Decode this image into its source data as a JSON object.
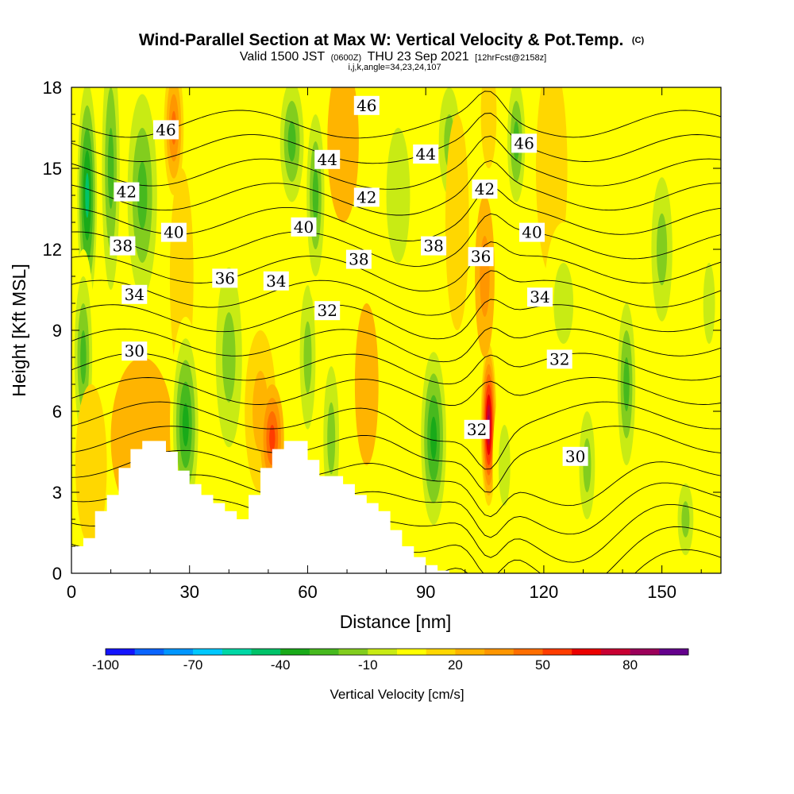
{
  "title": {
    "main": "Wind-Parallel Section at Max W: Vertical Velocity & Pot.Temp.",
    "main_suffix": "(C)",
    "valid_a": "Valid 1500 JST",
    "valid_b": "(0600Z)",
    "valid_c": "THU 23 Sep 2021",
    "valid_d": "[12hrFcst@2158z]",
    "ijk": "i,j,k,angle=34,23,24,107"
  },
  "chart_data": {
    "type": "heatmap",
    "xlabel": "Distance [nm]",
    "ylabel": "Height [Kft MSL]",
    "xlim": [
      0,
      165
    ],
    "ylim": [
      0,
      18
    ],
    "x_ticks": [
      "0",
      "30",
      "60",
      "90",
      "120",
      "150"
    ],
    "y_ticks": [
      "0",
      "3",
      "6",
      "9",
      "12",
      "15",
      "18"
    ],
    "colorbar": {
      "label": "Vertical Velocity [cm/s]",
      "min": -100,
      "max": 100,
      "tick_labels": [
        "-100",
        "-70",
        "-40",
        "-10",
        "20",
        "50",
        "80"
      ],
      "colors": [
        "#1414ff",
        "#0a64ff",
        "#0096ff",
        "#00c8ff",
        "#00d7a5",
        "#00c369",
        "#19aa19",
        "#46b91e",
        "#82cd1e",
        "#c8eb14",
        "#ffff00",
        "#ffd700",
        "#ffb400",
        "#ff9600",
        "#ff6e00",
        "#ff3c00",
        "#eb0000",
        "#c80032",
        "#9b005a",
        "#64008c"
      ]
    },
    "series": [
      {
        "name": "Vertical Velocity",
        "cells": [
          {
            "x": 4,
            "z": 14,
            "w": -45,
            "sx": 3,
            "sz": 5
          },
          {
            "x": 3,
            "z": 8,
            "w": -25,
            "sx": 3,
            "sz": 4
          },
          {
            "x": 10,
            "z": 15,
            "w": -30,
            "sx": 3,
            "sz": 6
          },
          {
            "x": 18,
            "z": 14,
            "w": -25,
            "sx": 5,
            "sz": 5
          },
          {
            "x": 26,
            "z": 16.5,
            "w": 45,
            "sx": 2.5,
            "sz": 2.5
          },
          {
            "x": 28,
            "z": 11,
            "w": 15,
            "sx": 3,
            "sz": 4
          },
          {
            "x": 18,
            "z": 5,
            "w": 20,
            "sx": 8,
            "sz": 3
          },
          {
            "x": 5,
            "z": 4,
            "w": 15,
            "sx": 4,
            "sz": 3
          },
          {
            "x": 29,
            "z": 5.5,
            "w": -35,
            "sx": 4,
            "sz": 4
          },
          {
            "x": 40,
            "z": 8,
            "w": -20,
            "sx": 5,
            "sz": 5
          },
          {
            "x": 48,
            "z": 6,
            "w": 25,
            "sx": 4,
            "sz": 3
          },
          {
            "x": 51,
            "z": 5,
            "w": 50,
            "sx": 3,
            "sz": 2
          },
          {
            "x": 60,
            "z": 8,
            "w": -20,
            "sx": 3,
            "sz": 4
          },
          {
            "x": 62,
            "z": 14,
            "w": -25,
            "sx": 3,
            "sz": 4
          },
          {
            "x": 56,
            "z": 16,
            "w": -30,
            "sx": 4,
            "sz": 3
          },
          {
            "x": 69,
            "z": 16,
            "w": 20,
            "sx": 4,
            "sz": 3
          },
          {
            "x": 66,
            "z": 5,
            "w": -20,
            "sx": 3,
            "sz": 4
          },
          {
            "x": 75,
            "z": 7,
            "w": 20,
            "sx": 3,
            "sz": 3
          },
          {
            "x": 83,
            "z": 14,
            "w": -10,
            "sx": 6,
            "sz": 5
          },
          {
            "x": 92,
            "z": 5,
            "w": -40,
            "sx": 4,
            "sz": 4
          },
          {
            "x": 96,
            "z": 16,
            "w": -20,
            "sx": 4,
            "sz": 3
          },
          {
            "x": 98,
            "z": 13,
            "w": 10,
            "sx": 3,
            "sz": 4
          },
          {
            "x": 106,
            "z": 5.5,
            "w": 85,
            "sx": 2,
            "sz": 3
          },
          {
            "x": 105,
            "z": 11,
            "w": 30,
            "sx": 2.5,
            "sz": 3
          },
          {
            "x": 106,
            "z": 17,
            "w": 10,
            "sx": 2,
            "sz": 2
          },
          {
            "x": 110,
            "z": 4,
            "w": -10,
            "sx": 3,
            "sz": 3
          },
          {
            "x": 113,
            "z": 16,
            "w": -30,
            "sx": 3,
            "sz": 3
          },
          {
            "x": 122,
            "z": 15,
            "w": 15,
            "sx": 4,
            "sz": 4
          },
          {
            "x": 125,
            "z": 10,
            "w": -10,
            "sx": 5,
            "sz": 3
          },
          {
            "x": 131,
            "z": 4,
            "w": -20,
            "sx": 3,
            "sz": 3
          },
          {
            "x": 141,
            "z": 7,
            "w": -25,
            "sx": 3,
            "sz": 4
          },
          {
            "x": 150,
            "z": 12,
            "w": -15,
            "sx": 4,
            "sz": 4
          },
          {
            "x": 156,
            "z": 2,
            "w": -15,
            "sx": 3,
            "sz": 2
          },
          {
            "x": 162,
            "z": 10,
            "w": -10,
            "sx": 3,
            "sz": 3
          }
        ]
      },
      {
        "name": "Pot.Temp.",
        "isotherm_labels": [
          {
            "v": "30",
            "x": 16,
            "z": 8.2
          },
          {
            "v": "30",
            "x": 128,
            "z": 4.3
          },
          {
            "v": "32",
            "x": 65,
            "z": 9.7
          },
          {
            "v": "32",
            "x": 103,
            "z": 5.3
          },
          {
            "v": "32",
            "x": 124,
            "z": 7.9
          },
          {
            "v": "34",
            "x": 16,
            "z": 10.3
          },
          {
            "v": "34",
            "x": 52,
            "z": 10.8
          },
          {
            "v": "34",
            "x": 119,
            "z": 10.2
          },
          {
            "v": "36",
            "x": 39,
            "z": 10.9
          },
          {
            "v": "36",
            "x": 104,
            "z": 11.7
          },
          {
            "v": "38",
            "x": 13,
            "z": 12.1
          },
          {
            "v": "38",
            "x": 73,
            "z": 11.6
          },
          {
            "v": "38",
            "x": 92,
            "z": 12.1
          },
          {
            "v": "40",
            "x": 26,
            "z": 12.6
          },
          {
            "v": "40",
            "x": 59,
            "z": 12.8
          },
          {
            "v": "40",
            "x": 117,
            "z": 12.6
          },
          {
            "v": "42",
            "x": 14,
            "z": 14.1
          },
          {
            "v": "42",
            "x": 75,
            "z": 13.9
          },
          {
            "v": "42",
            "x": 105,
            "z": 14.2
          },
          {
            "v": "44",
            "x": 65,
            "z": 15.3
          },
          {
            "v": "44",
            "x": 90,
            "z": 15.5
          },
          {
            "v": "46",
            "x": 24,
            "z": 16.4
          },
          {
            "v": "46",
            "x": 75,
            "z": 17.3
          },
          {
            "v": "46",
            "x": 115,
            "z": 15.9
          }
        ]
      }
    ],
    "terrain": {
      "name": "Terrain",
      "x": [
        0,
        3,
        6,
        9,
        12,
        15,
        18,
        21,
        24,
        27,
        30,
        33,
        36,
        39,
        42,
        45,
        48,
        51,
        54,
        57,
        60,
        63,
        66,
        69,
        72,
        75,
        78,
        81,
        84,
        87,
        90,
        93,
        96,
        99,
        102,
        105,
        108,
        111,
        114,
        117,
        120,
        123,
        126,
        129,
        132,
        135,
        138,
        141,
        144,
        147,
        150,
        153,
        156,
        159,
        162,
        165
      ],
      "z": [
        1.0,
        1.3,
        2.3,
        2.9,
        3.9,
        4.6,
        4.9,
        4.9,
        4.5,
        3.8,
        3.3,
        2.9,
        2.6,
        2.3,
        2.0,
        2.9,
        3.9,
        4.6,
        4.9,
        4.9,
        4.2,
        3.6,
        3.6,
        3.3,
        2.9,
        2.6,
        2.3,
        1.6,
        1.0,
        0.6,
        0.3,
        0.1,
        0.0,
        0.0,
        0.0,
        0.0,
        0.0,
        0.0,
        0.0,
        0.0,
        0.0,
        0.0,
        0.0,
        0.0,
        0.0,
        0.0,
        0.0,
        0.0,
        0.0,
        0.0,
        0.0,
        0.0,
        0.0,
        0.0,
        0.0,
        0.0
      ]
    }
  }
}
